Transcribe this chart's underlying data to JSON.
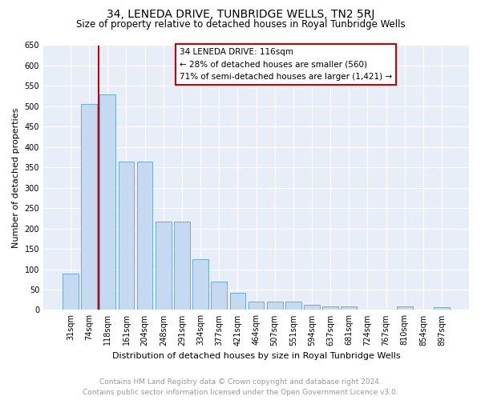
{
  "title": "34, LENEDA DRIVE, TUNBRIDGE WELLS, TN2 5RJ",
  "subtitle": "Size of property relative to detached houses in Royal Tunbridge Wells",
  "xlabel": "Distribution of detached houses by size in Royal Tunbridge Wells",
  "ylabel": "Number of detached properties",
  "footnote1": "Contains HM Land Registry data © Crown copyright and database right 2024.",
  "footnote2": "Contains public sector information licensed under the Open Government Licence v3.0.",
  "bar_labels": [
    "31sqm",
    "74sqm",
    "118sqm",
    "161sqm",
    "204sqm",
    "248sqm",
    "291sqm",
    "334sqm",
    "377sqm",
    "421sqm",
    "464sqm",
    "507sqm",
    "551sqm",
    "594sqm",
    "637sqm",
    "681sqm",
    "724sqm",
    "767sqm",
    "810sqm",
    "854sqm",
    "897sqm"
  ],
  "bar_values": [
    90,
    505,
    530,
    365,
    365,
    217,
    217,
    125,
    70,
    42,
    21,
    21,
    21,
    12,
    8,
    8,
    0,
    0,
    8,
    0,
    7
  ],
  "bar_color": "#c5d9f0",
  "bar_edge_color": "#6aacd8",
  "vline_x_index": 1.5,
  "vline_color": "#cc0000",
  "annotation_title": "34 LENEDA DRIVE: 116sqm",
  "annotation_line1": "← 28% of detached houses are smaller (560)",
  "annotation_line2": "71% of semi-detached houses are larger (1,421) →",
  "annotation_box_facecolor": "#ffffff",
  "annotation_box_edgecolor": "#cc0000",
  "ylim": [
    0,
    650
  ],
  "yticks": [
    0,
    50,
    100,
    150,
    200,
    250,
    300,
    350,
    400,
    450,
    500,
    550,
    600,
    650
  ],
  "plot_bgcolor": "#e8eef7",
  "fig_bgcolor": "#ffffff",
  "title_fontsize": 10,
  "subtitle_fontsize": 8.5,
  "ylabel_fontsize": 8,
  "xlabel_fontsize": 8,
  "tick_fontsize": 7,
  "annotation_fontsize": 7.5,
  "footnote_fontsize": 6.5,
  "footnote_color": "#999999"
}
